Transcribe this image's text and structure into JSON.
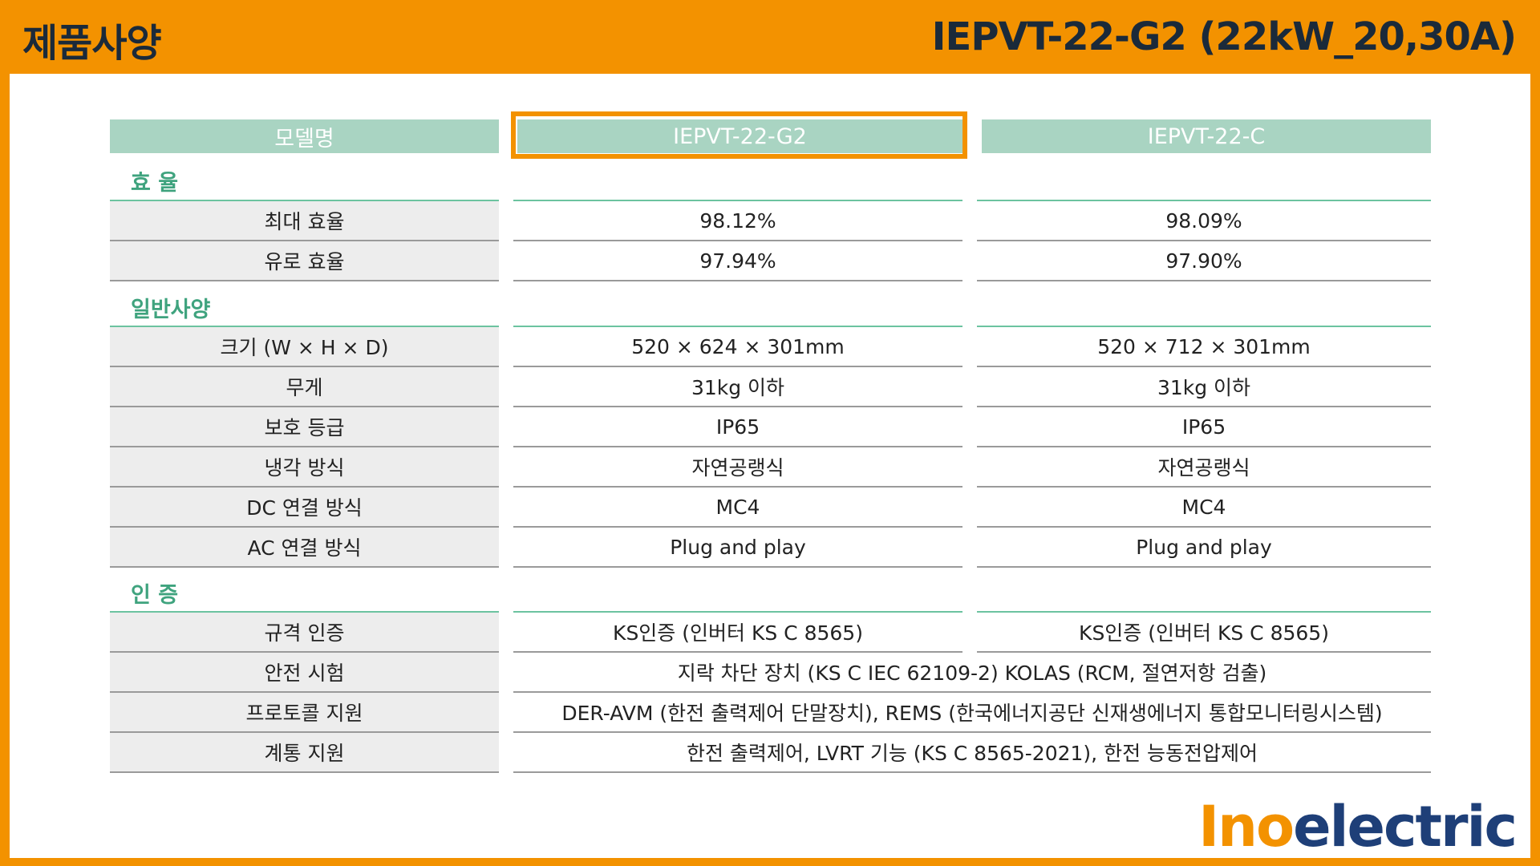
{
  "header": {
    "title": "제품사양",
    "model_title": "IEPVT-22-G2 (22kW_20,30A)"
  },
  "table": {
    "head": {
      "label": "모델명",
      "col1": "IEPVT-22-G2",
      "col2": "IEPVT-22-C"
    },
    "sections": {
      "efficiency": "효   율",
      "general": "일반사양",
      "certification": "인   증"
    },
    "rows": [
      {
        "label": "최대 효율",
        "col1": "98.12%",
        "col2": "98.09%"
      },
      {
        "label": "유로 효율",
        "col1": "97.94%",
        "col2": "97.90%"
      },
      {
        "label": "크기 (W × H × D)",
        "col1": "520 × 624 × 301mm",
        "col2": "520 × 712 × 301mm"
      },
      {
        "label": "무게",
        "col1": "31kg 이하",
        "col2": "31kg 이하"
      },
      {
        "label": "보호 등급",
        "col1": "IP65",
        "col2": "IP65"
      },
      {
        "label": "냉각 방식",
        "col1": "자연공랭식",
        "col2": "자연공랭식"
      },
      {
        "label": "DC 연결 방식",
        "col1": "MC4",
        "col2": "MC4"
      },
      {
        "label": "AC 연결 방식",
        "col1": "Plug and play",
        "col2": "Plug and play"
      },
      {
        "label": "규격 인증",
        "col1": "KS인증 (인버터 KS C 8565)",
        "col2": "KS인증 (인버터 KS C 8565)"
      },
      {
        "label": "안전 시험",
        "merged": "지락 차단 장치 (KS C IEC 62109-2) KOLAS (RCM, 절연저항 검출)"
      },
      {
        "label": "프로토콜 지원",
        "merged": "DER-AVM (한전 출력제어 단말장치), REMS (한국에너지공단 신재생에너지 통합모니터링시스템)"
      },
      {
        "label": "계통 지원",
        "merged": "한전 출력제어, LVRT 기능 (KS C 8565-2021), 한전 능동전압제어"
      }
    ]
  },
  "logo": {
    "part1": "Ino",
    "part2": "electric"
  },
  "colors": {
    "accent": "#F39200",
    "header_fill": "#A9D4C2",
    "section_text": "#3FA37E",
    "title_text": "#1B2A3A",
    "logo_blue": "#1E3F78"
  }
}
